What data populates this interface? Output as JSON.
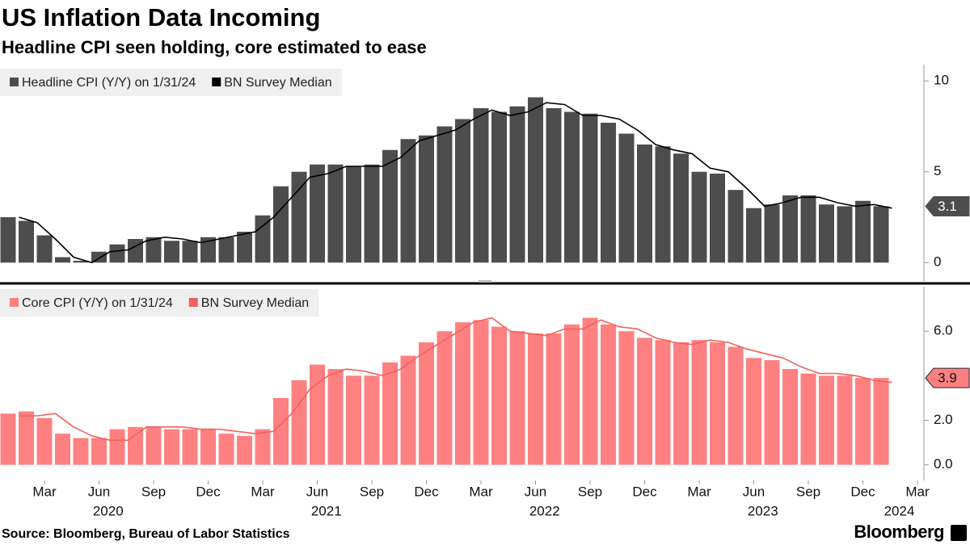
{
  "title": "US Inflation Data Incoming",
  "subtitle": "Headline CPI seen holding, core estimated to ease",
  "source": "Source: Bloomberg, Bureau of Labor Statistics",
  "logo": "Bloomberg",
  "x_axis": {
    "categories": [
      null,
      null,
      "Mar",
      null,
      null,
      "Jun",
      null,
      null,
      "Sep",
      null,
      null,
      "Dec",
      null,
      null,
      "Mar",
      null,
      null,
      "Jun",
      null,
      null,
      "Sep",
      null,
      null,
      "Dec",
      null,
      null,
      "Mar",
      null,
      null,
      "Jun",
      null,
      null,
      "Sep",
      null,
      null,
      "Dec",
      null,
      null,
      "Mar",
      null,
      null,
      "Jun",
      null,
      null,
      "Sep",
      null,
      null,
      "Dec",
      null,
      null,
      "Mar"
    ],
    "groups": [
      {
        "label": "2020",
        "start": 0,
        "end": 11
      },
      {
        "label": "2021",
        "start": 12,
        "end": 23
      },
      {
        "label": "2022",
        "start": 24,
        "end": 35
      },
      {
        "label": "2023",
        "start": 36,
        "end": 47
      },
      {
        "label": "2024",
        "start": 48,
        "end": 50
      }
    ]
  },
  "chart_data": [
    {
      "type": "bar",
      "ylim": [
        -1.1,
        10.9
      ],
      "yticks": [
        0,
        5,
        10
      ],
      "series": [
        {
          "name": "Headline CPI (Y/Y) on 1/31/24",
          "color": "#4d4d4d",
          "type": "bar",
          "values": [
            2.5,
            2.3,
            1.5,
            0.3,
            0.1,
            0.6,
            1.0,
            1.3,
            1.4,
            1.2,
            1.2,
            1.4,
            1.4,
            1.7,
            2.6,
            4.2,
            5.0,
            5.4,
            5.4,
            5.3,
            5.4,
            6.2,
            6.8,
            7.0,
            7.5,
            7.9,
            8.5,
            8.3,
            8.6,
            9.1,
            8.5,
            8.3,
            8.2,
            7.7,
            7.1,
            6.5,
            6.4,
            6.0,
            5.0,
            4.9,
            4.0,
            3.0,
            3.2,
            3.7,
            3.7,
            3.2,
            3.1,
            3.4,
            3.1,
            null,
            null
          ]
        },
        {
          "name": "BN Survey Median",
          "color": "#000000",
          "type": "line",
          "values": [
            2.5,
            2.2,
            1.3,
            0.3,
            0.0,
            0.6,
            0.7,
            1.2,
            1.4,
            1.3,
            1.1,
            1.3,
            1.5,
            1.7,
            2.5,
            3.6,
            4.7,
            4.9,
            5.3,
            5.3,
            5.3,
            5.8,
            6.7,
            7.0,
            7.3,
            7.9,
            8.4,
            8.1,
            8.3,
            8.8,
            8.7,
            8.1,
            8.1,
            7.9,
            7.3,
            6.5,
            6.2,
            6.0,
            5.2,
            5.0,
            4.1,
            3.1,
            3.3,
            3.6,
            3.6,
            3.3,
            3.1,
            3.2,
            3.0,
            null,
            null
          ]
        }
      ]
    },
    {
      "type": "bar",
      "ylim": [
        -0.7,
        8.0
      ],
      "yticks": [
        {
          "value": 0,
          "label": "0.0"
        },
        {
          "value": 2,
          "label": "2.0"
        },
        {
          "value": 6,
          "label": "6.0"
        }
      ],
      "series": [
        {
          "name": "Core CPI (Y/Y) on 1/31/24",
          "color": "#ff8080",
          "type": "bar",
          "values": [
            2.3,
            2.4,
            2.1,
            1.4,
            1.2,
            1.2,
            1.6,
            1.7,
            1.7,
            1.6,
            1.6,
            1.6,
            1.4,
            1.3,
            1.6,
            3.0,
            3.8,
            4.5,
            4.3,
            4.0,
            4.0,
            4.6,
            4.9,
            5.5,
            6.0,
            6.4,
            6.5,
            6.2,
            6.0,
            5.9,
            5.9,
            6.3,
            6.6,
            6.3,
            6.0,
            5.7,
            5.6,
            5.5,
            5.6,
            5.5,
            5.3,
            4.8,
            4.7,
            4.3,
            4.1,
            4.0,
            4.0,
            3.9,
            3.9,
            null,
            null
          ]
        },
        {
          "name": "BN Survey Median",
          "color": "#f0625e",
          "type": "line",
          "values": [
            2.2,
            2.2,
            2.3,
            1.7,
            1.3,
            1.1,
            1.1,
            1.7,
            1.7,
            1.7,
            1.6,
            1.6,
            1.5,
            1.4,
            1.5,
            2.3,
            3.4,
            4.0,
            4.3,
            4.2,
            4.0,
            4.3,
            4.9,
            5.4,
            5.9,
            6.4,
            6.6,
            6.0,
            5.9,
            5.8,
            6.1,
            6.1,
            6.5,
            6.2,
            6.1,
            5.7,
            5.5,
            5.4,
            5.6,
            5.5,
            5.2,
            5.0,
            4.8,
            4.4,
            4.1,
            4.1,
            4.0,
            3.8,
            3.7,
            null,
            null
          ]
        }
      ]
    }
  ]
}
